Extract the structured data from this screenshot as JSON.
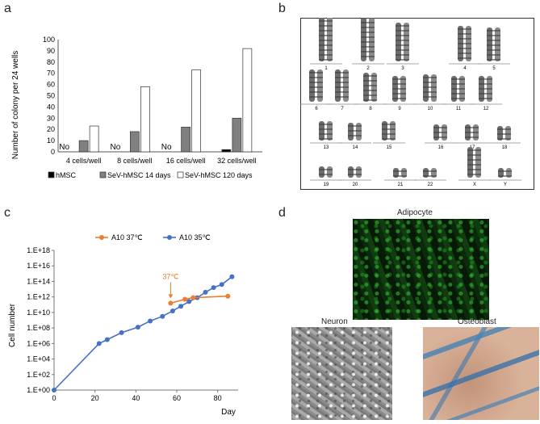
{
  "panels": {
    "a": {
      "letter": "a",
      "ylabel": "Number of colony per 24 wells",
      "y_ticks": [
        "0",
        "10",
        "20",
        "30",
        "40",
        "50",
        "60",
        "70",
        "80",
        "90",
        "100"
      ],
      "no_labels": [
        "No",
        "No",
        "No"
      ],
      "legend": [
        "hMSC",
        "SeV-hMSC 14 days",
        "SeV-hMSC 120 days"
      ]
    },
    "b": {
      "letter": "b",
      "chromosome_labels": [
        "1",
        "2",
        "3",
        "4",
        "5",
        "6",
        "7",
        "8",
        "9",
        "10",
        "11",
        "12",
        "13",
        "14",
        "15",
        "16",
        "17",
        "18",
        "19",
        "20",
        "21",
        "22",
        "X",
        "Y"
      ]
    },
    "c": {
      "letter": "c",
      "ylabel": "Cell number",
      "xlabel": "Day",
      "annotation": "37℃",
      "legend": [
        "A10 37℃",
        "A10 35℃"
      ]
    },
    "d": {
      "letter": "d",
      "captions": {
        "adipocyte": "Adipocyte",
        "neuron": "Neuron",
        "osteoblast": "Osteoblast"
      }
    }
  },
  "colors": {
    "blue_series": "#4472C4",
    "orange_series": "#ED7D31",
    "bar_hmsc": "#000000",
    "bar_14d": "#808080",
    "bar_120d": "#ffffff"
  },
  "chart_data": [
    {
      "type": "bar",
      "categories": [
        "4 cells/well",
        "8 cells/well",
        "16 cells/well",
        "32 cells/well"
      ],
      "series": [
        {
          "name": "hMSC",
          "values": [
            0,
            0,
            0,
            2
          ]
        },
        {
          "name": "SeV-hMSC 14 days",
          "values": [
            10,
            18,
            22,
            30
          ]
        },
        {
          "name": "SeV-hMSC 120 days",
          "values": [
            23,
            58,
            73,
            92
          ]
        }
      ],
      "ylabel": "Number of colony per 24 wells",
      "ylim": [
        0,
        100
      ],
      "legend_position": "bottom"
    },
    {
      "type": "line",
      "x_label": "Day",
      "y_label": "Cell number",
      "y_scale": "log10",
      "xlim": [
        0,
        90
      ],
      "x_ticks": [
        "0",
        "20",
        "40",
        "60",
        "80"
      ],
      "y_ticks": [
        "1.E+00",
        "1.E+02",
        "1.E+04",
        "1.E+06",
        "1.E+08",
        "1.E+10",
        "1.E+12",
        "1.E+14",
        "1.E+16",
        "1.E+18"
      ],
      "ylim_exp": [
        0,
        18
      ],
      "legend_position": "top",
      "series": [
        {
          "name": "A10 37℃",
          "color": "#ED7D31",
          "points": [
            [
              57,
              11.2
            ],
            [
              64,
              11.7
            ],
            [
              68,
              11.9
            ],
            [
              85,
              12.1
            ]
          ]
        },
        {
          "name": "A10 35℃",
          "color": "#4472C4",
          "points": [
            [
              0,
              0
            ],
            [
              22,
              6
            ],
            [
              26,
              6.5
            ],
            [
              33,
              7.4
            ],
            [
              41,
              8.1
            ],
            [
              47,
              8.9
            ],
            [
              53,
              9.5
            ],
            [
              58,
              10.2
            ],
            [
              62,
              10.8
            ],
            [
              66,
              11.4
            ],
            [
              70,
              11.9
            ],
            [
              74,
              12.6
            ],
            [
              78,
              13.2
            ],
            [
              82,
              13.6
            ],
            [
              87,
              14.6
            ]
          ]
        }
      ]
    }
  ]
}
